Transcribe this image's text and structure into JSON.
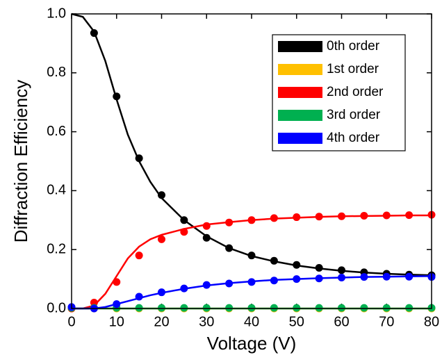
{
  "chart_data": {
    "type": "scatter_fit",
    "x_label": "Voltage (V)",
    "y_label": "Diffraction Efficiency",
    "x": [
      0,
      5,
      10,
      15,
      20,
      25,
      30,
      35,
      40,
      45,
      50,
      55,
      60,
      65,
      70,
      75,
      80
    ],
    "fit_x": [
      0,
      2.5,
      5,
      7.5,
      10,
      12.5,
      15,
      17.5,
      20,
      25,
      30,
      35,
      40,
      45,
      50,
      55,
      60,
      65,
      70,
      75,
      80
    ],
    "series": [
      {
        "name": "0th order",
        "color": "#000000",
        "values": [
          null,
          0.935,
          0.72,
          0.51,
          0.385,
          0.3,
          0.24,
          0.205,
          0.18,
          0.162,
          0.148,
          0.138,
          0.13,
          0.123,
          0.118,
          0.115,
          0.113
        ],
        "fit": [
          1.0,
          0.99,
          0.94,
          0.84,
          0.71,
          0.59,
          0.5,
          0.43,
          0.375,
          0.3,
          0.245,
          0.205,
          0.178,
          0.16,
          0.146,
          0.136,
          0.128,
          0.122,
          0.118,
          0.115,
          0.113
        ]
      },
      {
        "name": "1st order",
        "color": "#ffc000",
        "values": [
          0,
          0,
          0,
          0,
          0,
          0,
          0,
          0,
          0,
          0,
          0,
          0,
          0,
          0,
          0,
          0,
          0
        ],
        "fit": [
          0,
          0,
          0,
          0,
          0,
          0,
          0,
          0,
          0,
          0,
          0,
          0,
          0,
          0,
          0,
          0,
          0,
          0,
          0,
          0,
          0
        ]
      },
      {
        "name": "2nd order",
        "color": "#ff0000",
        "values": [
          0,
          0.02,
          0.09,
          0.18,
          0.235,
          0.26,
          0.28,
          0.292,
          0.3,
          0.307,
          0.31,
          0.312,
          0.313,
          0.315,
          0.316,
          0.317,
          0.318
        ],
        "fit": [
          0,
          0,
          0.01,
          0.05,
          0.11,
          0.17,
          0.21,
          0.235,
          0.25,
          0.27,
          0.285,
          0.293,
          0.3,
          0.305,
          0.308,
          0.311,
          0.313,
          0.314,
          0.315,
          0.316,
          0.316
        ]
      },
      {
        "name": "3rd order",
        "color": "#00b050",
        "values": [
          0.002,
          0.002,
          0.002,
          0.002,
          0.002,
          0.002,
          0.002,
          0.002,
          0.002,
          0.002,
          0.002,
          0.002,
          0.002,
          0.002,
          0.002,
          0.002,
          0.002
        ],
        "fit": [
          0,
          0,
          0,
          0,
          0,
          0,
          0,
          0,
          0,
          0,
          0,
          0,
          0,
          0,
          0,
          0,
          0,
          0,
          0,
          0,
          0
        ]
      },
      {
        "name": "4th order",
        "color": "#0000ff",
        "values": [
          0.005,
          0,
          0.015,
          0.04,
          0.055,
          0.068,
          0.08,
          0.085,
          0.09,
          0.095,
          0.1,
          0.102,
          0.105,
          0.107,
          0.108,
          0.108,
          0.107
        ],
        "fit": [
          0,
          0,
          0,
          0.005,
          0.015,
          0.025,
          0.035,
          0.045,
          0.053,
          0.067,
          0.078,
          0.086,
          0.092,
          0.097,
          0.1,
          0.103,
          0.105,
          0.107,
          0.108,
          0.109,
          0.11
        ]
      }
    ],
    "xlim": [
      0,
      80
    ],
    "xticks": [
      0,
      10,
      20,
      30,
      40,
      50,
      60,
      70,
      80
    ],
    "ylim": [
      0,
      1.0
    ],
    "yticks": [
      {
        "value": 0,
        "label": "0.0"
      },
      {
        "value": 0.2,
        "label": "0.2"
      },
      {
        "value": 0.4,
        "label": "0.4"
      },
      {
        "value": 0.6,
        "label": "0.6"
      },
      {
        "value": 0.8,
        "label": "0.8"
      },
      {
        "value": 1.0,
        "label": "1.0"
      }
    ],
    "legend": "upper-right",
    "grid": false
  }
}
